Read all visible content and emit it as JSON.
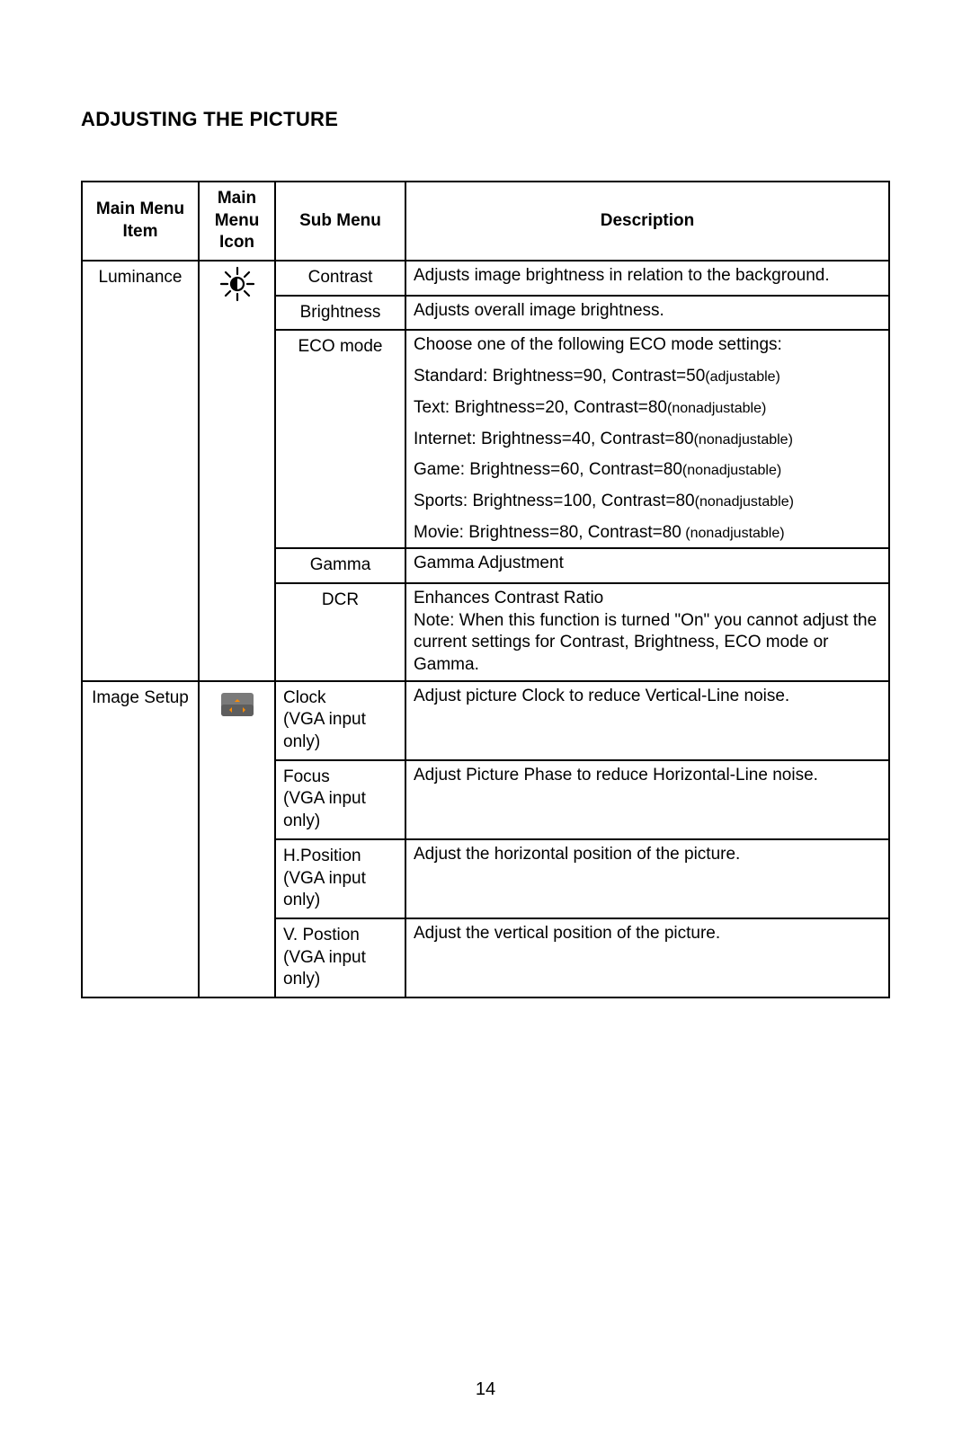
{
  "page": {
    "title": "ADJUSTING THE PICTURE",
    "page_number": "14"
  },
  "table": {
    "headers": {
      "main_menu_item": "Main Menu Item",
      "main_menu_icon": "Main Menu Icon",
      "sub_menu": "Sub Menu",
      "description": "Description"
    },
    "sections": [
      {
        "main_item": "Luminance",
        "icon": "brightness-icon",
        "rows": [
          {
            "submenu": "Contrast",
            "description": "Adjusts image brightness in relation to the background."
          },
          {
            "submenu": "Brightness",
            "description": "Adjusts overall image brightness."
          },
          {
            "submenu": "ECO mode",
            "eco": {
              "intro": "Choose one of the following ECO mode settings:",
              "lines": [
                {
                  "main": "Standard: Brightness=90, Contrast=50",
                  "suffix": "(adjustable)"
                },
                {
                  "main": "Text: Brightness=20, Contrast=80",
                  "suffix": "(nonadjustable)"
                },
                {
                  "main": "Internet: Brightness=40, Contrast=80",
                  "suffix": "(nonadjustable)"
                },
                {
                  "main": "Game: Brightness=60, Contrast=80",
                  "suffix": "(nonadjustable)"
                },
                {
                  "main": "Sports: Brightness=100, Contrast=80",
                  "suffix": "(nonadjustable)"
                },
                {
                  "main": "Movie: Brightness=80, Contrast=80",
                  "suffix": " (nonadjustable)"
                }
              ]
            }
          },
          {
            "submenu": "Gamma",
            "description": "Gamma Adjustment"
          },
          {
            "submenu": "DCR",
            "description": "Enhances Contrast Ratio\nNote: When this function is turned \"On\" you cannot adjust the current settings for Contrast, Brightness, ECO mode or Gamma."
          }
        ]
      },
      {
        "main_item": "Image Setup",
        "icon": "image-setup-icon",
        "rows": [
          {
            "submenu": "Clock\n(VGA input only)",
            "description": "Adjust picture Clock to reduce Vertical-Line noise."
          },
          {
            "submenu": "Focus\n(VGA input only)",
            "description": "Adjust Picture Phase to reduce Horizontal-Line noise."
          },
          {
            "submenu": "H.Position\n(VGA input only)",
            "description": "Adjust the horizontal position of the picture."
          },
          {
            "submenu": "V. Postion\n(VGA input only)",
            "description": "Adjust the vertical position of the picture."
          }
        ]
      }
    ]
  },
  "colors": {
    "text": "#000000",
    "background": "#ffffff",
    "border": "#000000",
    "icon_bg": "#7a7a7a",
    "icon_fg": "#d9d9d9",
    "icon_arrow": "#ff8c00"
  }
}
